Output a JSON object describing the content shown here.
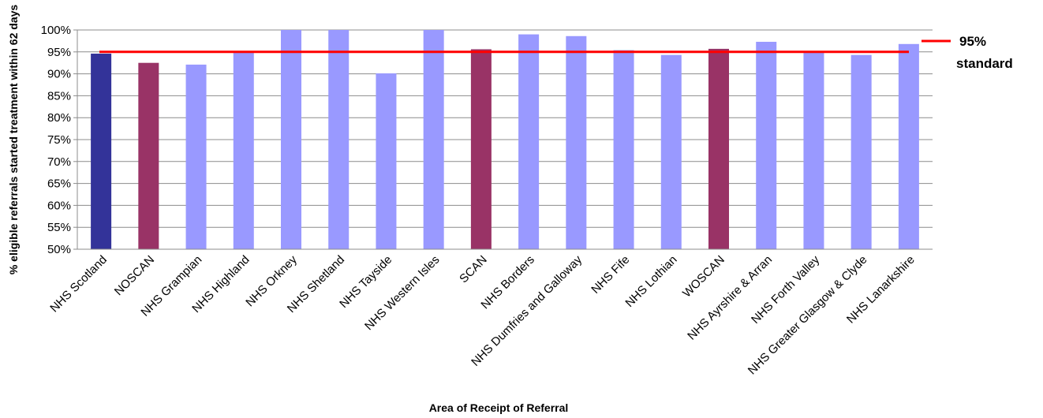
{
  "chart_data": {
    "type": "bar",
    "categories": [
      "NHS Scotland",
      "NOSCAN",
      "NHS Grampian",
      "NHS Highland",
      "NHS Orkney",
      "NHS Shetland",
      "NHS Tayside",
      "NHS Western Isles",
      "SCAN",
      "NHS Borders",
      "NHS Dumfries and Galloway",
      "NHS Fife",
      "NHS Lothian",
      "WOSCAN",
      "NHS Ayrshire & Arran",
      "NHS Forth Valley",
      "NHS Greater Glasgow & Clyde",
      "NHS Lanarkshire"
    ],
    "values": [
      94.6,
      92.5,
      92.1,
      95.2,
      100,
      100,
      90.1,
      100,
      95.6,
      99.0,
      98.6,
      95.4,
      94.3,
      95.7,
      97.3,
      95.1,
      94.3,
      96.8
    ],
    "bar_colors": [
      "#333399",
      "#993366",
      "#9999ff",
      "#9999ff",
      "#9999ff",
      "#9999ff",
      "#9999ff",
      "#9999ff",
      "#993366",
      "#9999ff",
      "#9999ff",
      "#9999ff",
      "#9999ff",
      "#993366",
      "#9999ff",
      "#9999ff",
      "#9999ff",
      "#9999ff"
    ],
    "standard": {
      "value": 95,
      "color": "#ff0000",
      "label_line1": "95%",
      "label_line2": "standard"
    },
    "xlabel": "Area of Receipt of Referral",
    "ylabel": "% eligible referrals started treatment within 62 days",
    "ylim": [
      50,
      100
    ],
    "yticks": [
      "50%",
      "55%",
      "60%",
      "65%",
      "70%",
      "75%",
      "80%",
      "85%",
      "90%",
      "95%",
      "100%"
    ],
    "grid": true,
    "legend": "right"
  }
}
